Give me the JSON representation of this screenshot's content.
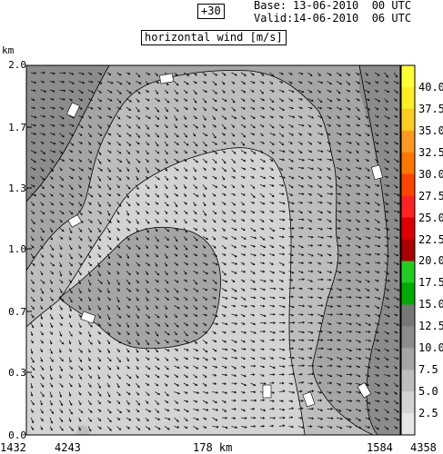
{
  "header": {
    "forecast_step": "+30",
    "base_label": "Base:",
    "base_value": "13-06-2010  00 UTC",
    "valid_label": "Valid:",
    "valid_value": "14-06-2010  06 UTC",
    "field_title": "horizontal wind [m/s]"
  },
  "axes": {
    "y_unit": "km",
    "y_ticks": [
      "2.0",
      "1.7",
      "1.3",
      "1.0",
      "0.7",
      "0.3",
      "0.0"
    ],
    "x_left_outer": "1432",
    "x_left_inner": "4243",
    "x_center": "178 km",
    "x_right_inner": "1584",
    "x_right_outer": "4358"
  },
  "colorbar": {
    "labels": [
      "40.0",
      "37.5",
      "35.0",
      "32.5",
      "30.0",
      "27.5",
      "25.0",
      "22.5",
      "20.0",
      "17.5",
      "15.0",
      "12.5",
      "10.0",
      "7.5",
      "5.0",
      "2.5"
    ],
    "bins": [
      {
        "color": "#ffff33"
      },
      {
        "color": "#ffee22"
      },
      {
        "color": "#ffcc22"
      },
      {
        "color": "#ff9922"
      },
      {
        "color": "#ff7700"
      },
      {
        "color": "#ff4400"
      },
      {
        "color": "#ff2222"
      },
      {
        "color": "#dd0000"
      },
      {
        "color": "#aa0000"
      },
      {
        "color": "#22cc22"
      },
      {
        "color": "#00aa00"
      },
      {
        "color": "#777777"
      },
      {
        "color": "#8c8c8c"
      },
      {
        "color": "#a5a5a5"
      },
      {
        "color": "#bdbdbd"
      },
      {
        "color": "#d3d3d3"
      },
      {
        "color": "#e6e6e6"
      }
    ]
  },
  "colors": {
    "level_0_2_5": "#e6e6e6",
    "level_2_5_5": "#d3d3d3",
    "level_5_7_5": "#bdbdbd",
    "level_7_5_10": "#a5a5a5",
    "level_10_12_5": "#8c8c8c"
  }
}
